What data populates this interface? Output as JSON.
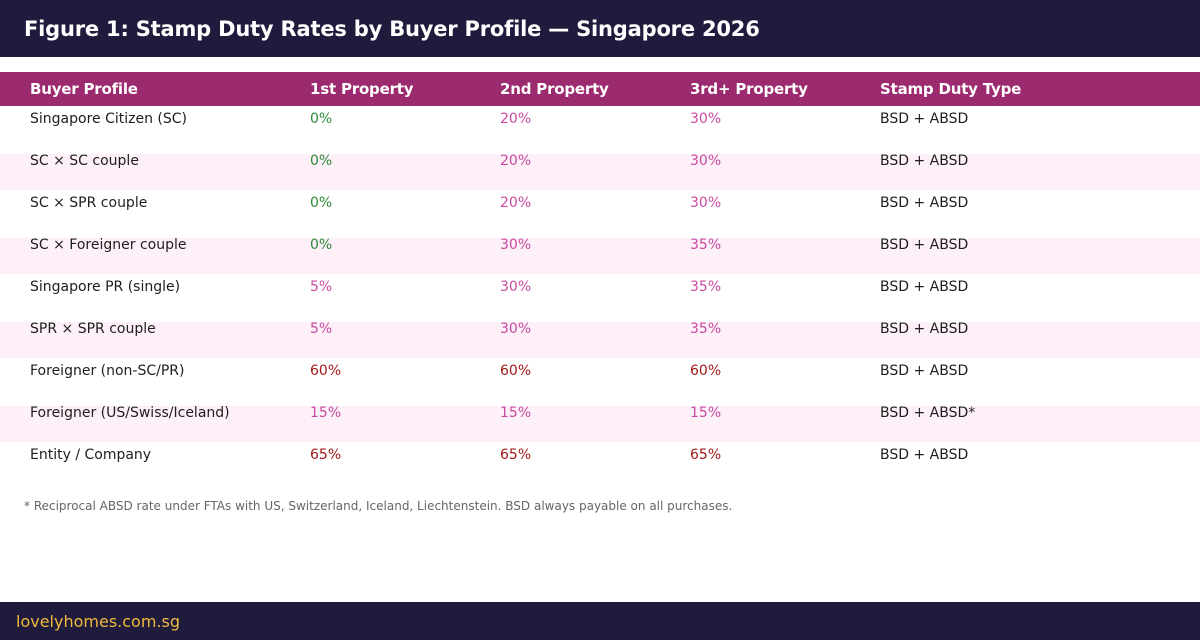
{
  "header": {
    "title": "Figure 1: Stamp Duty Rates by Buyer Profile — Singapore 2026"
  },
  "table": {
    "columns": [
      "Buyer Profile",
      "1st Property",
      "2nd Property",
      "3rd+ Property",
      "Stamp Duty Type"
    ],
    "rows": [
      [
        "Singapore Citizen (SC)",
        "0%",
        "20%",
        "30%",
        "BSD + ABSD"
      ],
      [
        "SC × SC couple",
        "0%",
        "20%",
        "30%",
        "BSD + ABSD"
      ],
      [
        "SC × SPR couple",
        "0%",
        "20%",
        "30%",
        "BSD + ABSD"
      ],
      [
        "SC × Foreigner couple",
        "0%",
        "30%",
        "35%",
        "BSD + ABSD"
      ],
      [
        "Singapore PR (single)",
        "5%",
        "30%",
        "35%",
        "BSD + ABSD"
      ],
      [
        "SPR × SPR couple",
        "5%",
        "30%",
        "35%",
        "BSD + ABSD"
      ],
      [
        "Foreigner (non-SC/PR)",
        "60%",
        "60%",
        "60%",
        "BSD + ABSD"
      ],
      [
        "Foreigner (US/Swiss/Iceland)",
        "15%",
        "15%",
        "15%",
        "BSD + ABSD*"
      ],
      [
        "Entity / Company",
        "65%",
        "65%",
        "65%",
        "BSD + ABSD"
      ]
    ]
  },
  "colors": {
    "header_bg": "#1f1b3d",
    "table_header_bg": "#9c2a6e",
    "alt_row_bg": "#fdf0f8",
    "rate_zero": "#2e8b3a",
    "rate_mid": "#c94aa0",
    "rate_high": "#a01818",
    "brand": "#f2b93d"
  },
  "footnote": "* Reciprocal ABSD rate under FTAs with US, Switzerland, Iceland, Liechtenstein. BSD always payable on all purchases.",
  "footer": {
    "brand": "lovelyhomes.com.sg"
  }
}
